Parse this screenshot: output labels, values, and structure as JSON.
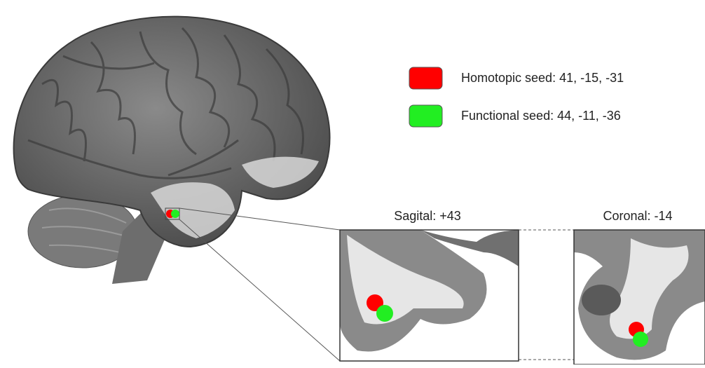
{
  "legend": [
    {
      "label": "Homotopic seed: 41, -15, -31",
      "color": "#ff0000"
    },
    {
      "label": "Functional seed: 44, -11, -36",
      "color": "#22ee22"
    }
  ],
  "panels": [
    {
      "title": "Sagital: +43"
    },
    {
      "title": "Coronal: -14"
    }
  ]
}
